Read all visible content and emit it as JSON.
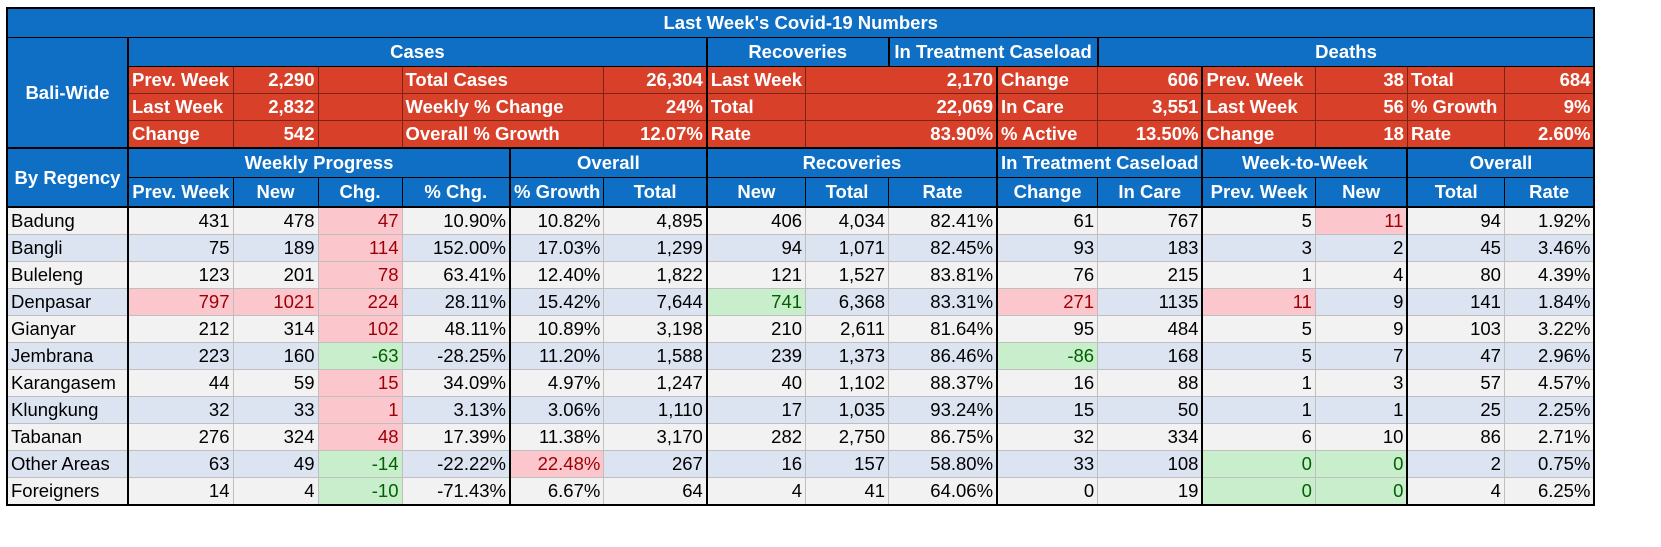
{
  "title": "Last Week's Covid-19 Numbers",
  "colors": {
    "header_blue": "#0e6fc5",
    "summary_red": "#d9402a",
    "increase_pink": "#fbc7cd",
    "decrease_green": "#c8eecb",
    "row_shade": "#dde4f1"
  },
  "baliwide": {
    "side_label": "Bali-Wide",
    "groups": {
      "cases": "Cases",
      "recoveries": "Recoveries",
      "treatment": "In Treatment Caseload",
      "deaths": "Deaths"
    },
    "rows": [
      {
        "c_l1": "Prev. Week",
        "c_v1": "2,290",
        "c_l2": "Total Cases",
        "c_v2": "26,304",
        "r_l": "Last Week",
        "r_v": "2,170",
        "t_l": "Change",
        "t_v": "606",
        "d_l1": "Prev. Week",
        "d_v1": "38",
        "d_l2": "Total",
        "d_v2": "684"
      },
      {
        "c_l1": "Last Week",
        "c_v1": "2,832",
        "c_l2": "Weekly % Change",
        "c_v2": "24%",
        "r_l": "Total",
        "r_v": "22,069",
        "t_l": "In Care",
        "t_v": "3,551",
        "d_l1": "Last Week",
        "d_v1": "56",
        "d_l2": "% Growth",
        "d_v2": "9%"
      },
      {
        "c_l1": "Change",
        "c_v1": "542",
        "c_l2": "Overall % Growth",
        "c_v2": "12.07%",
        "r_l": "Rate",
        "r_v": "83.90%",
        "t_l": "% Active",
        "t_v": "13.50%",
        "d_l1": "Change",
        "d_v1": "18",
        "d_l2": "Rate",
        "d_v2": "2.60%"
      }
    ]
  },
  "regency": {
    "side_label": "By Regency",
    "groups": {
      "weekly": "Weekly Progress",
      "overall": "Overall",
      "recoveries": "Recoveries",
      "treatment": "In Treatment Caseload",
      "week_to_week": "Week-to-Week",
      "deaths_overall": "Overall"
    },
    "columns": [
      "Prev. Week",
      "New",
      "Chg.",
      "% Chg.",
      "% Growth",
      "Total",
      "New",
      "Total",
      "Rate",
      "Change",
      "In Care",
      "Prev. Week",
      "New",
      "Total",
      "Rate"
    ],
    "rows": [
      {
        "name": "Badung",
        "cells": [
          "431",
          "478",
          "47",
          "10.90%",
          "10.82%",
          "4,895",
          "406",
          "4,034",
          "82.41%",
          "61",
          "767",
          "5",
          "11",
          "94",
          "1.92%"
        ],
        "hl": {
          "2": "pink",
          "12": "pink"
        }
      },
      {
        "name": "Bangli",
        "cells": [
          "75",
          "189",
          "114",
          "152.00%",
          "17.03%",
          "1,299",
          "94",
          "1,071",
          "82.45%",
          "93",
          "183",
          "3",
          "2",
          "45",
          "3.46%"
        ],
        "hl": {
          "2": "pink"
        }
      },
      {
        "name": "Buleleng",
        "cells": [
          "123",
          "201",
          "78",
          "63.41%",
          "12.40%",
          "1,822",
          "121",
          "1,527",
          "83.81%",
          "76",
          "215",
          "1",
          "4",
          "80",
          "4.39%"
        ],
        "hl": {
          "2": "pink"
        }
      },
      {
        "name": "Denpasar",
        "cells": [
          "797",
          "1021",
          "224",
          "28.11%",
          "15.42%",
          "7,644",
          "741",
          "6,368",
          "83.31%",
          "271",
          "1135",
          "11",
          "9",
          "141",
          "1.84%"
        ],
        "hl": {
          "0": "pink",
          "1": "pink",
          "2": "pink",
          "6": "green",
          "9": "pink",
          "11": "pink"
        }
      },
      {
        "name": "Gianyar",
        "cells": [
          "212",
          "314",
          "102",
          "48.11%",
          "10.89%",
          "3,198",
          "210",
          "2,611",
          "81.64%",
          "95",
          "484",
          "5",
          "9",
          "103",
          "3.22%"
        ],
        "hl": {
          "2": "pink"
        }
      },
      {
        "name": "Jembrana",
        "cells": [
          "223",
          "160",
          "-63",
          "-28.25%",
          "11.20%",
          "1,588",
          "239",
          "1,373",
          "86.46%",
          "-86",
          "168",
          "5",
          "7",
          "47",
          "2.96%"
        ],
        "hl": {
          "2": "green",
          "9": "green"
        }
      },
      {
        "name": "Karangasem",
        "cells": [
          "44",
          "59",
          "15",
          "34.09%",
          "4.97%",
          "1,247",
          "40",
          "1,102",
          "88.37%",
          "16",
          "88",
          "1",
          "3",
          "57",
          "4.57%"
        ],
        "hl": {
          "2": "pink"
        }
      },
      {
        "name": "Klungkung",
        "cells": [
          "32",
          "33",
          "1",
          "3.13%",
          "3.06%",
          "1,110",
          "17",
          "1,035",
          "93.24%",
          "15",
          "50",
          "1",
          "1",
          "25",
          "2.25%"
        ],
        "hl": {
          "2": "pink"
        }
      },
      {
        "name": "Tabanan",
        "cells": [
          "276",
          "324",
          "48",
          "17.39%",
          "11.38%",
          "3,170",
          "282",
          "2,750",
          "86.75%",
          "32",
          "334",
          "6",
          "10",
          "86",
          "2.71%"
        ],
        "hl": {
          "2": "pink"
        }
      },
      {
        "name": "Other Areas",
        "cells": [
          "63",
          "49",
          "-14",
          "-22.22%",
          "22.48%",
          "267",
          "16",
          "157",
          "58.80%",
          "33",
          "108",
          "0",
          "0",
          "2",
          "0.75%"
        ],
        "hl": {
          "2": "green",
          "4": "pink",
          "11": "green",
          "12": "green"
        }
      },
      {
        "name": "Foreigners",
        "cells": [
          "14",
          "4",
          "-10",
          "-71.43%",
          "6.67%",
          "64",
          "4",
          "41",
          "64.06%",
          "0",
          "19",
          "0",
          "0",
          "4",
          "6.25%"
        ],
        "hl": {
          "2": "green",
          "11": "green",
          "12": "green"
        }
      }
    ]
  }
}
